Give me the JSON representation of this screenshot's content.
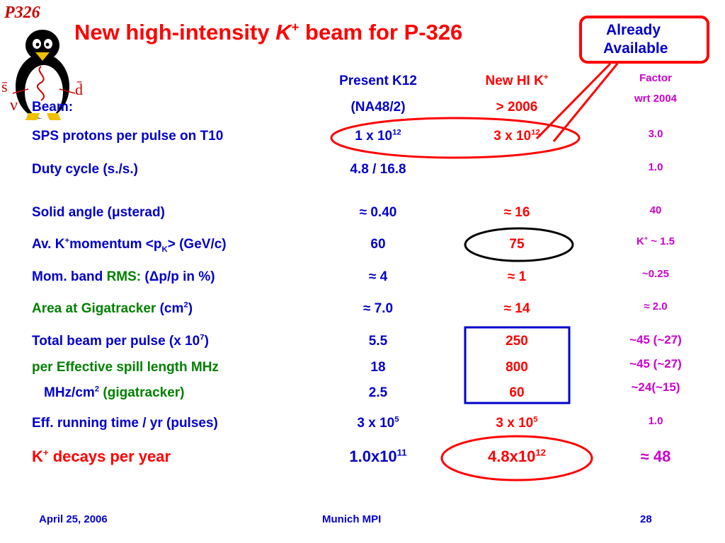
{
  "logo": {
    "text": "P326",
    "penguin_symbols": [
      "s̄",
      "d̄",
      "ν"
    ]
  },
  "title": {
    "pre": "New high-intensity ",
    "italic": "K",
    "sup": "+",
    "post": " beam for P-326"
  },
  "callout": {
    "line1": "Already",
    "line2": "Available"
  },
  "headers": {
    "col1_line1": "Present K12",
    "col1_line2": "(NA48/2)",
    "col2_line1": "New HI K",
    "col2_sup": "+",
    "col2_line2": "> 2006",
    "col3_line1": "Factor",
    "col3_line2": "wrt 2004",
    "row_header": "Beam:"
  },
  "rows": {
    "protons": {
      "label": "SPS protons per pulse on T10",
      "c1": "1 x 10",
      "c1_sup": "12",
      "c2": "3 x 10",
      "c2_sup": "12",
      "c3": "3.0"
    },
    "duty": {
      "label": "Duty cycle (s./s.)",
      "c1": "4.8 / 16.8",
      "c3": "1.0"
    },
    "solid": {
      "label_pre": "Solid angle (",
      "label_mu": "μ",
      "label_post": "sterad)",
      "c1": "≈ 0.40",
      "c2": "≈ 16",
      "c3": "40"
    },
    "momentum": {
      "label_pre": "Av. K",
      "label_sup": "+",
      "label_mid": "momentum <p",
      "label_sub": "K",
      "label_post": "> (GeV/c)",
      "c1": "60",
      "c2": "75",
      "c3_pre": "K",
      "c3_sup": "+",
      "c3_post": " ~ 1.5"
    },
    "band": {
      "label_pre": "Mom. band ",
      "label_rms": "RMS:",
      "label_post": " (Δp/p in %)",
      "c1": "≈ 4",
      "c2": "≈ 1",
      "c3": "~0.25"
    },
    "area": {
      "label_green": "Area at Gigatracker",
      "label_pre": " (cm",
      "label_sup": "2",
      "label_post": ")",
      "c1": "≈ 7.0",
      "c2": "≈ 14",
      "c3": "≈ 2.0"
    },
    "total": {
      "label_pre": "Total beam per pulse (x 10",
      "label_sup": "7",
      "label_post": ")",
      "c1": "5.5",
      "c2": "250",
      "c3": "~45 (~27)"
    },
    "spill": {
      "label": "per Effective spill length MHz",
      "c1": "18",
      "c2": "800",
      "c3": "~45 (~27)"
    },
    "gigatracker": {
      "label_pre": "MHz/cm",
      "label_sup": "2",
      "label_post": " (gigatracker)",
      "c1": "2.5",
      "c2": "60",
      "c3": "~24(~15)"
    },
    "running": {
      "label": "Eff. running time / yr (pulses)",
      "c1": "3 x 10",
      "c1_sup": "5",
      "c2": "3 x 10",
      "c2_sup": "5",
      "c3": "1.0"
    },
    "decays": {
      "label_pre": "K",
      "label_sup": "+",
      "label_post": " decays per year",
      "c1": "1.0x10",
      "c1_sup": "11",
      "c2": "4.8x10",
      "c2_sup": "12",
      "c3": "≈ 48"
    }
  },
  "footer": {
    "date": "April 25, 2006",
    "venue": "Munich MPI",
    "page": "28"
  },
  "colors": {
    "blue": "#0000cc",
    "red": "#ff0000",
    "green": "#008000",
    "magenta": "#cc00cc"
  }
}
